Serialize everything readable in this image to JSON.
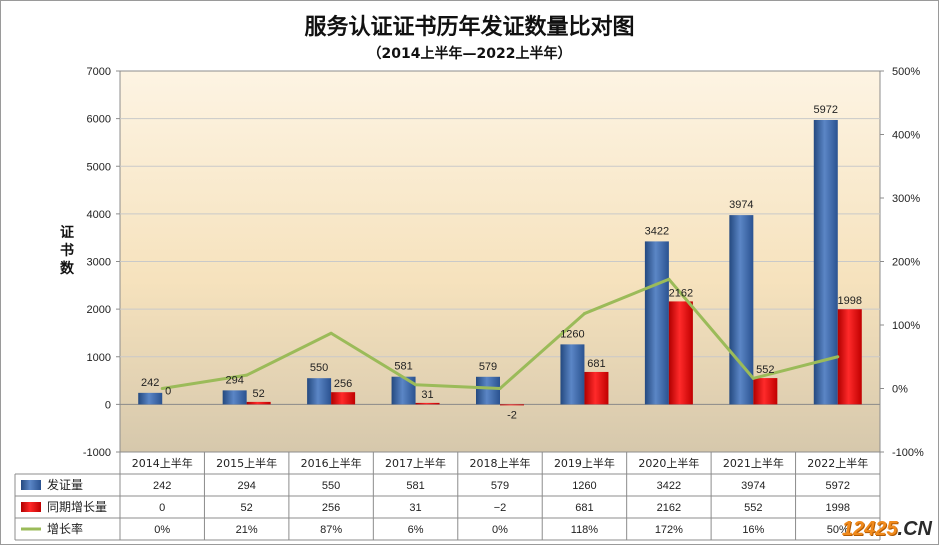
{
  "chart_data": {
    "type": "bar",
    "title": "服务认证证书历年发证数量比对图",
    "subtitle": "（2014上半年—2022上半年）",
    "ylabel": "证书数",
    "ylim": [
      -1000,
      7000
    ],
    "yticks": [
      "7000",
      "6000",
      "5000",
      "4000",
      "3000",
      "2000",
      "1000",
      "0",
      "-1000"
    ],
    "ytick_values": [
      7000,
      6000,
      5000,
      4000,
      3000,
      2000,
      1000,
      0,
      -1000
    ],
    "y2lim": [
      -100,
      500
    ],
    "y2ticks": [
      "500%",
      "400%",
      "300%",
      "200%",
      "100%",
      "0%",
      "-100%"
    ],
    "y2tick_values": [
      500,
      400,
      300,
      200,
      100,
      0,
      -100
    ],
    "categories": [
      "2014上半年",
      "2015上半年",
      "2016上半年",
      "2017上半年",
      "2018上半年",
      "2019上半年",
      "2020上半年",
      "2021上半年",
      "2022上半年"
    ],
    "series": [
      {
        "name": "发证量",
        "type": "bar",
        "color": "#3a64a8",
        "values": [
          242,
          294,
          550,
          581,
          579,
          1260,
          3422,
          3974,
          5972
        ],
        "labels": [
          "242",
          "294",
          "550",
          "581",
          "579",
          "1260",
          "3422",
          "3974",
          "5972"
        ]
      },
      {
        "name": "同期增长量",
        "type": "bar",
        "color": "#e01010",
        "values": [
          0,
          52,
          256,
          31,
          -2,
          681,
          2162,
          552,
          1998
        ],
        "labels": [
          "0",
          "52",
          "256",
          "31",
          "-2",
          "681",
          "2162",
          "552",
          "1998"
        ]
      },
      {
        "name": "增长率",
        "type": "line",
        "axis": "secondary",
        "color": "#9bbb59",
        "values": [
          0,
          21,
          87,
          6,
          0,
          118,
          172,
          16,
          50
        ]
      }
    ],
    "table": {
      "rows": [
        {
          "name": "发证量",
          "cells": [
            "242",
            "294",
            "550",
            "581",
            "579",
            "1260",
            "3422",
            "3974",
            "5972"
          ]
        },
        {
          "name": "同期增长量",
          "cells": [
            "0",
            "52",
            "256",
            "31",
            "−2",
            "681",
            "2162",
            "552",
            "1998"
          ]
        },
        {
          "name": "增长率",
          "cells": [
            "0%",
            "21%",
            "87%",
            "6%",
            "0%",
            "118%",
            "172%",
            "16%",
            "50%"
          ]
        }
      ]
    }
  },
  "watermark": {
    "number": "12425",
    "tld": ".CN"
  }
}
